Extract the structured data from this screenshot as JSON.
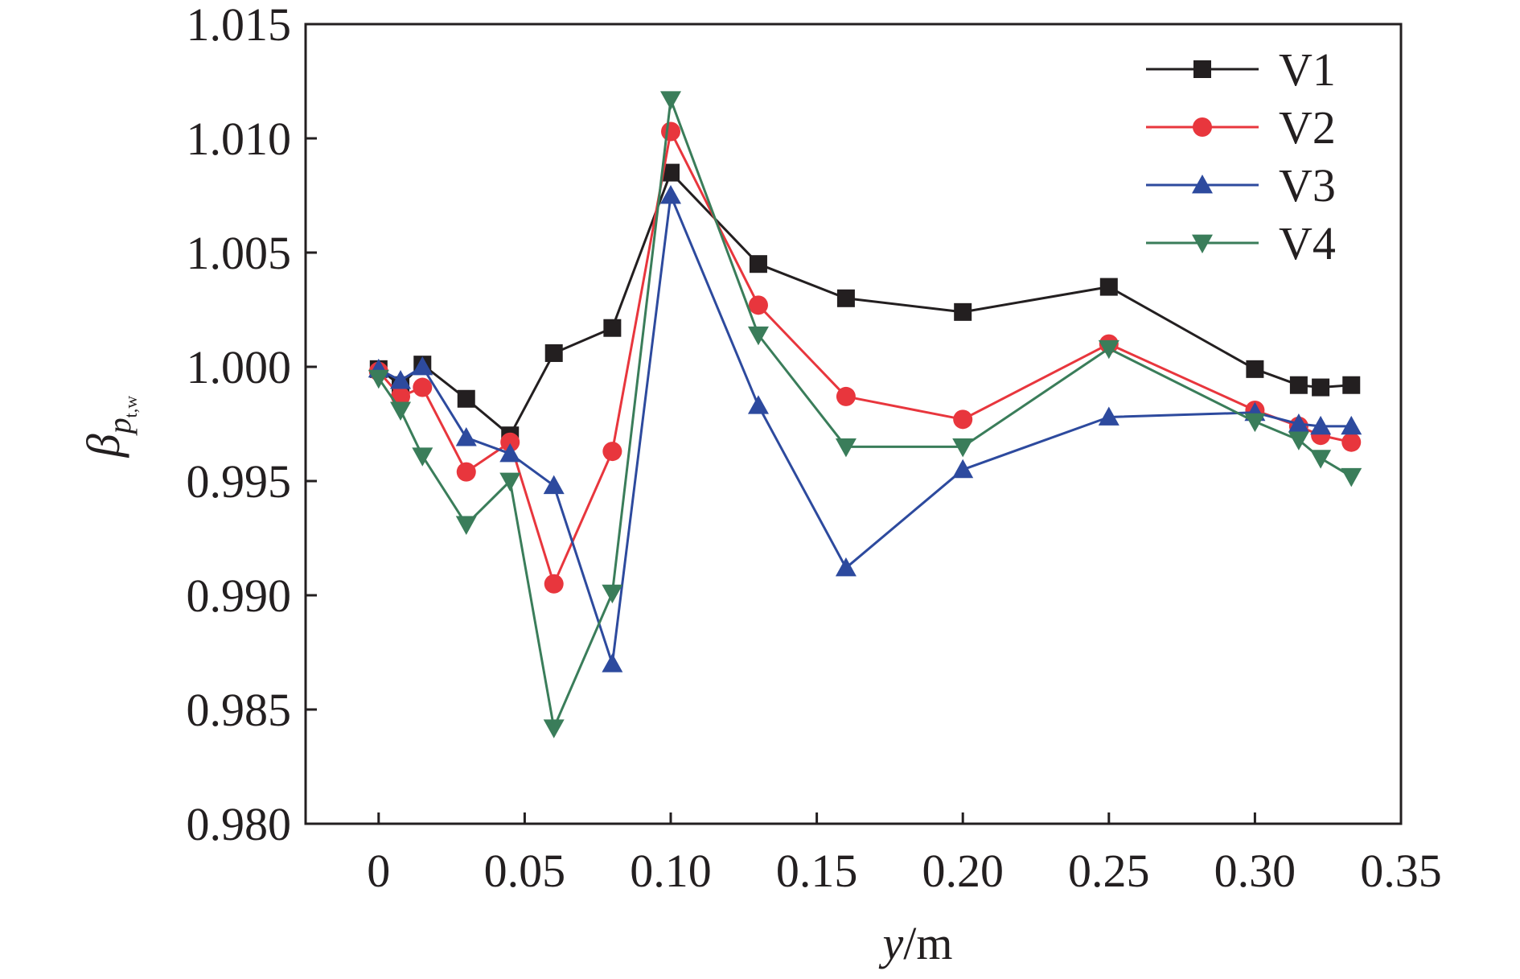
{
  "chart_data": {
    "type": "line",
    "xlabel": {
      "italic": "y",
      "rest": "/m"
    },
    "ylabel": {
      "main": "β",
      "sub": "p",
      "subsub": "t,w"
    },
    "xlim": [
      -0.025,
      0.35
    ],
    "ylim": [
      0.98,
      1.015
    ],
    "x_ticks": [
      {
        "value": 0,
        "label": "0"
      },
      {
        "value": 0.05,
        "label": "0.05"
      },
      {
        "value": 0.1,
        "label": "0.10"
      },
      {
        "value": 0.15,
        "label": "0.15"
      },
      {
        "value": 0.2,
        "label": "0.20"
      },
      {
        "value": 0.25,
        "label": "0.25"
      },
      {
        "value": 0.3,
        "label": "0.30"
      },
      {
        "value": 0.35,
        "label": "0.35"
      }
    ],
    "y_ticks": [
      {
        "value": 0.98,
        "label": "0.980"
      },
      {
        "value": 0.985,
        "label": "0.985"
      },
      {
        "value": 0.99,
        "label": "0.990"
      },
      {
        "value": 0.995,
        "label": "0.995"
      },
      {
        "value": 1.0,
        "label": "1.000"
      },
      {
        "value": 1.005,
        "label": "1.005"
      },
      {
        "value": 1.01,
        "label": "1.010"
      },
      {
        "value": 1.015,
        "label": "1.015"
      }
    ],
    "grid": false,
    "legend_position": "top-right",
    "x": [
      0,
      0.0075,
      0.015,
      0.03,
      0.045,
      0.06,
      0.08,
      0.1,
      0.13,
      0.16,
      0.2,
      0.25,
      0.3,
      0.315,
      0.3225,
      0.333
    ],
    "series": [
      {
        "name": "V1",
        "color": "#231f20",
        "marker": "square",
        "values": [
          0.9999,
          0.9992,
          1.0001,
          0.9986,
          0.997,
          1.0006,
          1.0017,
          1.0085,
          1.0045,
          1.003,
          1.0024,
          1.0035,
          0.9999,
          0.9992,
          0.9991,
          0.9992
        ]
      },
      {
        "name": "V2",
        "color": "#e8363d",
        "marker": "circle",
        "values": [
          0.9998,
          0.9987,
          0.9991,
          0.9954,
          0.9967,
          0.9905,
          0.9963,
          1.0103,
          1.0027,
          0.9987,
          0.9977,
          1.001,
          0.9981,
          0.9974,
          0.997,
          0.9967
        ]
      },
      {
        "name": "V3",
        "color": "#2d4a9e",
        "marker": "triangle-up",
        "values": [
          0.9999,
          0.9994,
          1.0,
          0.9969,
          0.9962,
          0.9948,
          0.987,
          1.0075,
          0.9983,
          0.9912,
          0.9955,
          0.9978,
          0.998,
          0.9975,
          0.9974,
          0.9974
        ]
      },
      {
        "name": "V4",
        "color": "#3a7d5a",
        "marker": "triangle-down",
        "values": [
          0.9995,
          0.9981,
          0.9961,
          0.9931,
          0.995,
          0.9842,
          0.9901,
          1.0117,
          1.0014,
          0.9965,
          0.9965,
          1.0008,
          0.9976,
          0.9968,
          0.996,
          0.9952
        ]
      }
    ]
  }
}
